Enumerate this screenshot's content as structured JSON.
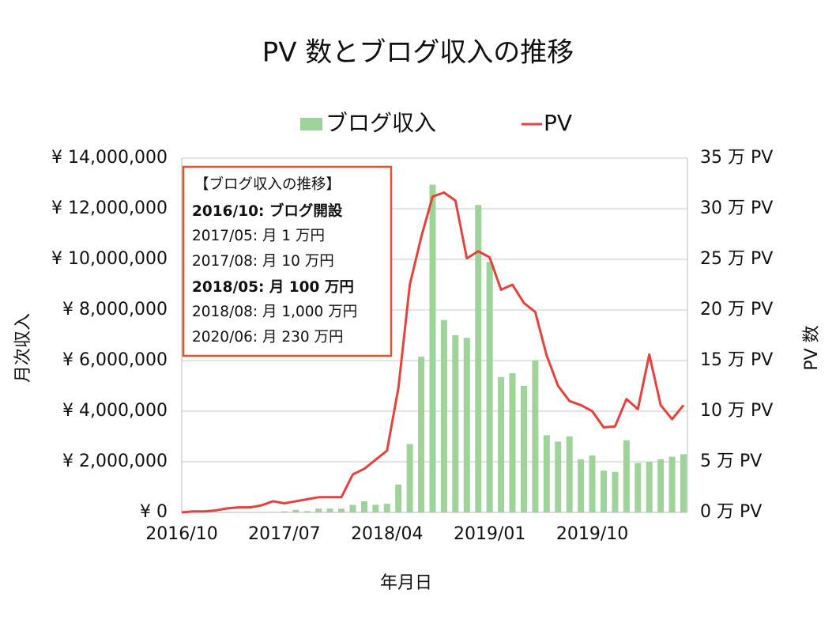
{
  "chart_data": {
    "type": "bar-line",
    "title": "PV 数とブログ収入の推移",
    "x_label": "年月日",
    "y_label": "月次収入",
    "y2_label": "PV 数",
    "categories": [
      "2016/10",
      null,
      null,
      null,
      null,
      null,
      null,
      null,
      null,
      "2017/07",
      null,
      null,
      null,
      null,
      null,
      null,
      null,
      null,
      "2018/04",
      null,
      null,
      null,
      null,
      null,
      null,
      null,
      null,
      "2019/01",
      null,
      null,
      null,
      null,
      null,
      null,
      null,
      null,
      "2019/10",
      null,
      null,
      null,
      null,
      null,
      null,
      null,
      null
    ],
    "series": [
      {
        "name": "ブログ収入",
        "type": "bar",
        "color": "#9ed39a",
        "values": [
          0,
          0,
          0,
          0,
          0,
          0,
          0,
          10000,
          20000,
          40000,
          100000,
          50000,
          150000,
          150000,
          150000,
          300000,
          440000,
          300000,
          340000,
          1100000,
          2700000,
          6150000,
          12950000,
          7600000,
          7000000,
          6900000,
          12150000,
          9900000,
          5350000,
          5500000,
          5000000,
          6000000,
          3050000,
          2800000,
          3000000,
          2100000,
          2250000,
          1650000,
          1600000,
          2850000,
          1950000,
          2000000,
          2100000,
          2200000,
          2300000
        ]
      },
      {
        "name": "PV",
        "type": "line",
        "axis": "y2",
        "color": "#e8403a",
        "values": [
          0,
          0.1,
          0.1,
          0.2,
          0.4,
          0.5,
          0.5,
          0.7,
          1.1,
          0.9,
          1.1,
          1.3,
          1.5,
          1.5,
          1.5,
          3.75,
          4.3,
          5.2,
          6.1,
          12.3,
          22.5,
          27.2,
          31.2,
          31.6,
          30.8,
          25.1,
          25.8,
          25.2,
          22,
          22.5,
          20.7,
          19.8,
          15.5,
          12.5,
          11,
          10.6,
          10,
          8.4,
          8.5,
          11.2,
          10.2,
          15.6,
          10.6,
          9.2,
          10.6
        ]
      }
    ],
    "ylim": [
      0,
      14000000
    ],
    "yticks": [
      {
        "value": 0,
        "label": "¥ 0"
      },
      {
        "value": 2000000,
        "label": "¥ 2,000,000"
      },
      {
        "value": 4000000,
        "label": "¥ 4,000,000"
      },
      {
        "value": 6000000,
        "label": "¥ 6,000,000"
      },
      {
        "value": 8000000,
        "label": "¥ 8,000,000"
      },
      {
        "value": 10000000,
        "label": "¥ 10,000,000"
      },
      {
        "value": 12000000,
        "label": "¥ 12,000,000"
      },
      {
        "value": 14000000,
        "label": "¥ 14,000,000"
      }
    ],
    "y2lim": [
      0,
      35
    ],
    "y2ticks": [
      {
        "value": 0,
        "label": "0 万 PV"
      },
      {
        "value": 5,
        "label": "5 万 PV"
      },
      {
        "value": 10,
        "label": "10 万 PV"
      },
      {
        "value": 15,
        "label": "15 万 PV"
      },
      {
        "value": 20,
        "label": "20 万 PV"
      },
      {
        "value": 25,
        "label": "25 万 PV"
      },
      {
        "value": 30,
        "label": "30 万 PV"
      },
      {
        "value": 35,
        "label": "35 万 PV"
      }
    ],
    "grid": true,
    "legend": "top",
    "annotation": [
      {
        "text": "【ブログ収入の推移】",
        "bold": false
      },
      {
        "text": "2016/10: ブログ開設",
        "bold": true
      },
      {
        "text": "2017/05: 月 1 万円",
        "bold": false
      },
      {
        "text": "2017/08: 月 10 万円",
        "bold": false
      },
      {
        "text": "2018/05: 月 100 万円",
        "bold": true
      },
      {
        "text": "2018/08: 月 1,000 万円",
        "bold": false
      },
      {
        "text": "2020/06: 月 230 万円",
        "bold": false
      }
    ]
  }
}
